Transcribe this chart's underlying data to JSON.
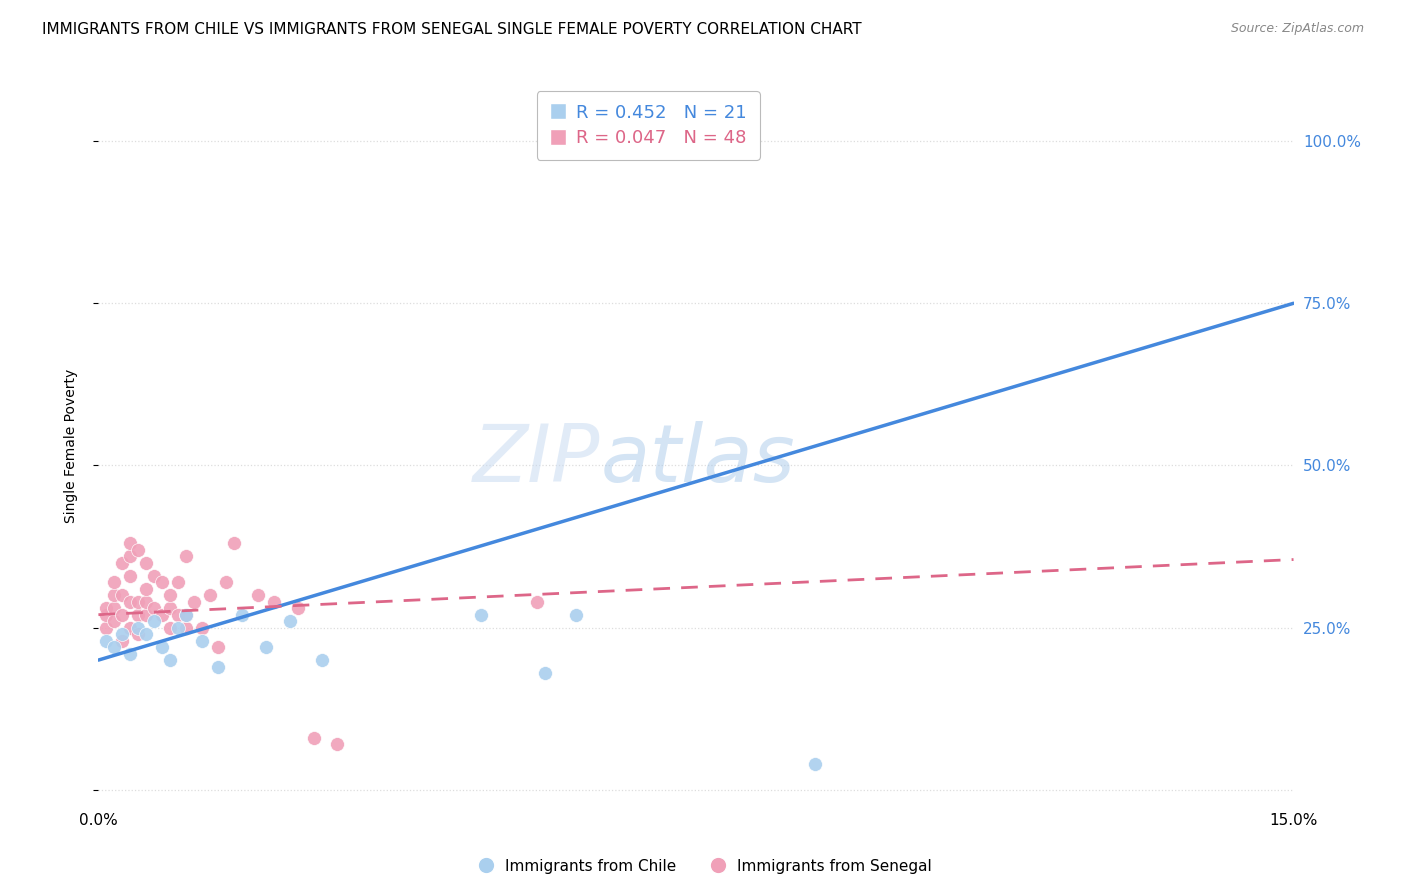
{
  "title": "IMMIGRANTS FROM CHILE VS IMMIGRANTS FROM SENEGAL SINGLE FEMALE POVERTY CORRELATION CHART",
  "source": "Source: ZipAtlas.com",
  "ylabel": "Single Female Poverty",
  "xlim": [
    0.0,
    0.15
  ],
  "ylim": [
    -0.02,
    1.08
  ],
  "yticks": [
    0.0,
    0.25,
    0.5,
    0.75,
    1.0
  ],
  "ytick_labels": [
    "",
    "25.0%",
    "50.0%",
    "75.0%",
    "100.0%"
  ],
  "xticks": [
    0.0,
    0.03,
    0.06,
    0.09,
    0.12,
    0.15
  ],
  "xtick_labels": [
    "0.0%",
    "",
    "",
    "",
    "",
    "15.0%"
  ],
  "watermark_top": "ZIP",
  "watermark_bot": "atlas",
  "chile_color": "#aacfee",
  "senegal_color": "#f0a0b8",
  "chile_line_color": "#4488dd",
  "senegal_line_color": "#dd6688",
  "chile_R": 0.452,
  "chile_N": 21,
  "senegal_R": 0.047,
  "senegal_N": 48,
  "chile_scatter_x": [
    0.001,
    0.002,
    0.003,
    0.004,
    0.005,
    0.006,
    0.007,
    0.008,
    0.009,
    0.01,
    0.011,
    0.013,
    0.015,
    0.018,
    0.021,
    0.024,
    0.028,
    0.048,
    0.056,
    0.06,
    0.09
  ],
  "chile_scatter_y": [
    0.23,
    0.22,
    0.24,
    0.21,
    0.25,
    0.24,
    0.26,
    0.22,
    0.2,
    0.25,
    0.27,
    0.23,
    0.19,
    0.27,
    0.22,
    0.26,
    0.2,
    0.27,
    0.18,
    0.27,
    0.04
  ],
  "senegal_scatter_x": [
    0.001,
    0.001,
    0.001,
    0.002,
    0.002,
    0.002,
    0.002,
    0.003,
    0.003,
    0.003,
    0.003,
    0.004,
    0.004,
    0.004,
    0.004,
    0.004,
    0.005,
    0.005,
    0.005,
    0.005,
    0.006,
    0.006,
    0.006,
    0.006,
    0.007,
    0.007,
    0.008,
    0.008,
    0.009,
    0.009,
    0.009,
    0.01,
    0.01,
    0.011,
    0.011,
    0.011,
    0.012,
    0.013,
    0.014,
    0.015,
    0.016,
    0.017,
    0.02,
    0.022,
    0.025,
    0.027,
    0.03,
    0.055
  ],
  "senegal_scatter_y": [
    0.25,
    0.27,
    0.28,
    0.26,
    0.28,
    0.3,
    0.32,
    0.23,
    0.27,
    0.3,
    0.35,
    0.25,
    0.29,
    0.33,
    0.36,
    0.38,
    0.24,
    0.27,
    0.29,
    0.37,
    0.27,
    0.29,
    0.31,
    0.35,
    0.28,
    0.33,
    0.27,
    0.32,
    0.25,
    0.28,
    0.3,
    0.27,
    0.32,
    0.25,
    0.27,
    0.36,
    0.29,
    0.25,
    0.3,
    0.22,
    0.32,
    0.38,
    0.3,
    0.29,
    0.28,
    0.08,
    0.07,
    0.29
  ],
  "chile_line_x": [
    0.0,
    0.15
  ],
  "chile_line_y": [
    0.2,
    0.75
  ],
  "senegal_line_x": [
    0.0,
    0.15
  ],
  "senegal_line_y": [
    0.27,
    0.355
  ],
  "background_color": "#ffffff",
  "grid_color": "#dddddd",
  "title_fontsize": 11,
  "axis_label_color": "#4488dd",
  "marker_size": 100
}
